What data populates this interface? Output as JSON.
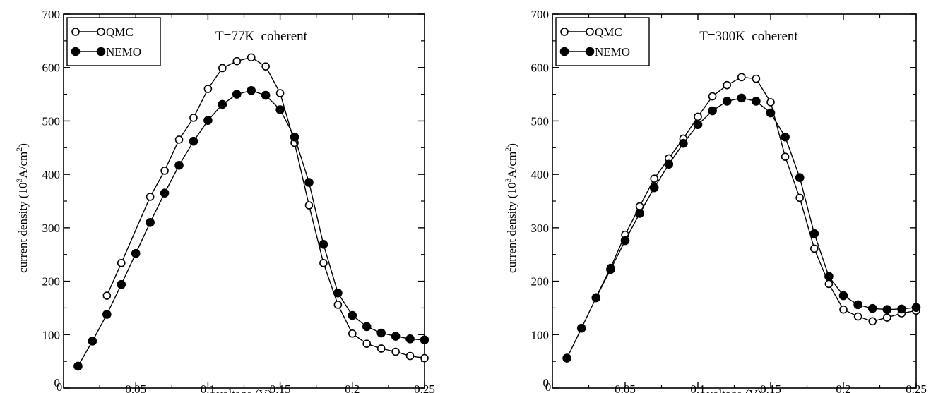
{
  "chart_data": [
    {
      "type": "line",
      "annotation": "T=77K  coherent",
      "xlabel": "voltage (V)",
      "ylabel": "current density (10^3 A/cm^2)",
      "ylabel_parts": {
        "main": "current density (10",
        "exp1": "3",
        "mid": "A/cm",
        "exp2": "2",
        "end": ")"
      },
      "xlim": [
        0,
        0.25
      ],
      "ylim": [
        0,
        700
      ],
      "x_ticks": [
        0,
        0.05,
        0.1,
        0.15,
        0.2,
        0.25
      ],
      "x_tick_labels": [
        "0",
        "0.05",
        "0.1",
        "0.15",
        "0.2",
        "0.25"
      ],
      "y_ticks": [
        0,
        100,
        200,
        300,
        400,
        500,
        600,
        700
      ],
      "y_tick_labels": [
        "0",
        "100",
        "200",
        "300",
        "400",
        "500",
        "600",
        "700"
      ],
      "legend_position": "top-left",
      "grid": false,
      "series": [
        {
          "name": "QMC",
          "marker": "open-circle",
          "x": [
            0.03,
            0.04,
            0.06,
            0.07,
            0.08,
            0.09,
            0.1,
            0.11,
            0.12,
            0.13,
            0.14,
            0.15,
            0.16,
            0.17,
            0.18,
            0.19,
            0.2,
            0.21,
            0.22,
            0.23,
            0.24,
            0.25
          ],
          "y": [
            173,
            234,
            358,
            407,
            465,
            506,
            560,
            599,
            612,
            619,
            602,
            552,
            459,
            342,
            234,
            156,
            102,
            83,
            74,
            68,
            60,
            56
          ]
        },
        {
          "name": "NEMO",
          "marker": "filled-circle",
          "x": [
            0.01,
            0.02,
            0.03,
            0.04,
            0.05,
            0.06,
            0.07,
            0.08,
            0.09,
            0.1,
            0.11,
            0.12,
            0.13,
            0.14,
            0.15,
            0.16,
            0.17,
            0.18,
            0.19,
            0.2,
            0.21,
            0.22,
            0.23,
            0.24,
            0.25
          ],
          "y": [
            41,
            88,
            138,
            194,
            252,
            310,
            365,
            417,
            462,
            501,
            531,
            550,
            557,
            548,
            521,
            470,
            385,
            269,
            178,
            136,
            115,
            103,
            97,
            92,
            90
          ]
        }
      ]
    },
    {
      "type": "line",
      "annotation": "T=300K  coherent",
      "xlabel": "voltage (V)",
      "ylabel": "current density (10^3 A/cm^2)",
      "ylabel_parts": {
        "main": "current density (10",
        "exp1": "3",
        "mid": "A/cm",
        "exp2": "2",
        "end": ")"
      },
      "xlim": [
        0,
        0.25
      ],
      "ylim": [
        0,
        700
      ],
      "x_ticks": [
        0,
        0.05,
        0.1,
        0.15,
        0.2,
        0.25
      ],
      "x_tick_labels": [
        "0",
        "0.05",
        "0.1",
        "0.15",
        "0.2",
        "0.25"
      ],
      "y_ticks": [
        0,
        100,
        200,
        300,
        400,
        500,
        600,
        700
      ],
      "y_tick_labels": [
        "0",
        "100",
        "200",
        "300",
        "400",
        "500",
        "600",
        "700"
      ],
      "legend_position": "top-left",
      "grid": false,
      "series": [
        {
          "name": "QMC",
          "marker": "open-circle",
          "x": [
            0.03,
            0.04,
            0.05,
            0.06,
            0.07,
            0.08,
            0.09,
            0.1,
            0.11,
            0.12,
            0.13,
            0.14,
            0.15,
            0.16,
            0.17,
            0.18,
            0.19,
            0.2,
            0.21,
            0.22,
            0.23,
            0.24,
            0.25
          ],
          "y": [
            170,
            225,
            287,
            340,
            392,
            430,
            467,
            508,
            546,
            567,
            582,
            579,
            535,
            433,
            356,
            261,
            195,
            147,
            134,
            125,
            132,
            140,
            145
          ]
        },
        {
          "name": "NEMO",
          "marker": "filled-circle",
          "x": [
            0.01,
            0.02,
            0.03,
            0.04,
            0.05,
            0.06,
            0.07,
            0.08,
            0.09,
            0.1,
            0.11,
            0.12,
            0.13,
            0.14,
            0.15,
            0.16,
            0.17,
            0.18,
            0.19,
            0.2,
            0.21,
            0.22,
            0.23,
            0.24,
            0.25
          ],
          "y": [
            56,
            112,
            169,
            222,
            276,
            327,
            375,
            419,
            458,
            493,
            519,
            537,
            543,
            537,
            515,
            470,
            394,
            289,
            209,
            173,
            156,
            149,
            147,
            148,
            151
          ]
        }
      ]
    }
  ]
}
